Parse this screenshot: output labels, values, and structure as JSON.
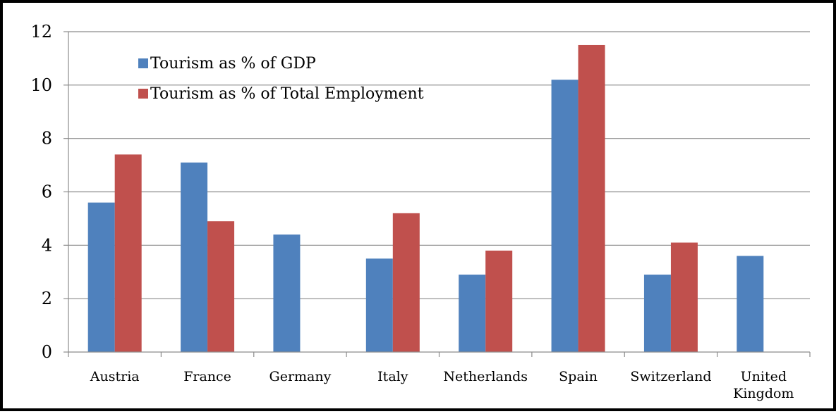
{
  "chart_data": {
    "type": "bar",
    "categories": [
      "Austria",
      "France",
      "Germany",
      "Italy",
      "Netherlands",
      "Spain",
      "Switzerland",
      "United Kingdom"
    ],
    "series": [
      {
        "name": "Tourism as % of GDP",
        "color": "#4F81BD",
        "values": [
          5.6,
          7.1,
          4.4,
          3.5,
          2.9,
          10.2,
          2.9,
          3.6
        ]
      },
      {
        "name": "Tourism as % of Total Employment",
        "color": "#C0504D",
        "values": [
          7.4,
          4.9,
          null,
          5.2,
          3.8,
          11.5,
          4.1,
          null
        ]
      }
    ],
    "yticks": [
      0,
      2,
      4,
      6,
      8,
      10,
      12
    ],
    "ylim": [
      0,
      12
    ],
    "grid": true,
    "legend_position": "top-left"
  }
}
